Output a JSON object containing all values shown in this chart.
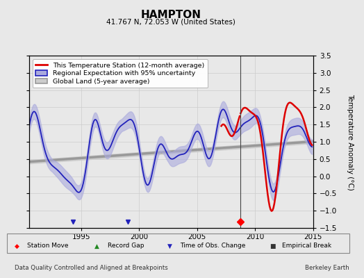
{
  "title": "HAMPTON",
  "subtitle": "41.767 N, 72.053 W (United States)",
  "ylabel": "Temperature Anomaly (°C)",
  "footer_left": "Data Quality Controlled and Aligned at Breakpoints",
  "footer_right": "Berkeley Earth",
  "xlim": [
    1990.5,
    2015.0
  ],
  "ylim": [
    -1.5,
    3.5
  ],
  "yticks": [
    -1.5,
    -1.0,
    -0.5,
    0.0,
    0.5,
    1.0,
    1.5,
    2.0,
    2.5,
    3.0,
    3.5
  ],
  "xticks": [
    1995,
    2000,
    2005,
    2010,
    2015
  ],
  "station_color": "#dd0000",
  "regional_color": "#2222bb",
  "regional_fill_color": "#aaaadd",
  "global_color": "#999999",
  "global_fill_color": "#cccccc",
  "breakline_color": "#444444",
  "station_move_year": 2008.7,
  "obs_change_years": [
    1994.3,
    1999.0
  ],
  "breakline_x": 2008.7,
  "bg_color": "#e8e8e8",
  "legend_entries": [
    "This Temperature Station (12-month average)",
    "Regional Expectation with 95% uncertainty",
    "Global Land (5-year average)"
  ]
}
